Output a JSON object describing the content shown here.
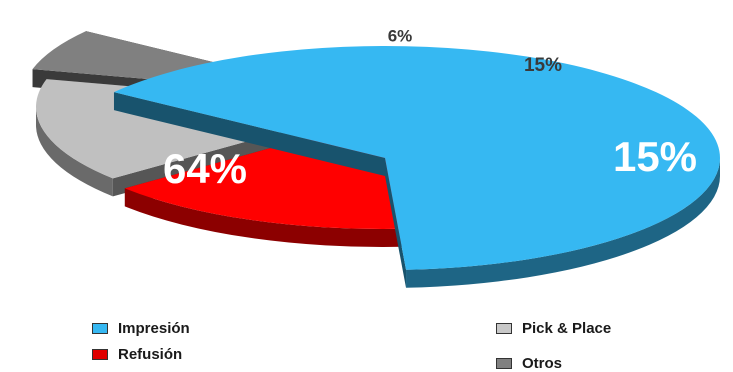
{
  "chart_data": {
    "type": "pie",
    "title": "",
    "three_d": true,
    "exploded": true,
    "label_format": "percent",
    "slices": [
      {
        "label": "Impresión",
        "value": 64,
        "display": "64%",
        "color": "#36B8F2"
      },
      {
        "label": "Refusión",
        "value": 15,
        "display": "15%",
        "color": "#FF0000"
      },
      {
        "label": "Pick & Place",
        "value": 15,
        "display": "15%",
        "color": "#C0C0C0"
      },
      {
        "label": "Otros",
        "value": 6,
        "display": "6%",
        "color": "#808080"
      }
    ],
    "legend_placement": "bottom"
  },
  "legend": {
    "impresion": "Impresión",
    "refusion": "Refusión",
    "pick_place": "Pick & Place",
    "otros": "Otros"
  },
  "colors": {
    "impresion_swatch": "#36B8F2",
    "refusion_swatch": "#E00000",
    "pick_place_swatch": "#C8C8C8",
    "otros_swatch": "#808080"
  }
}
